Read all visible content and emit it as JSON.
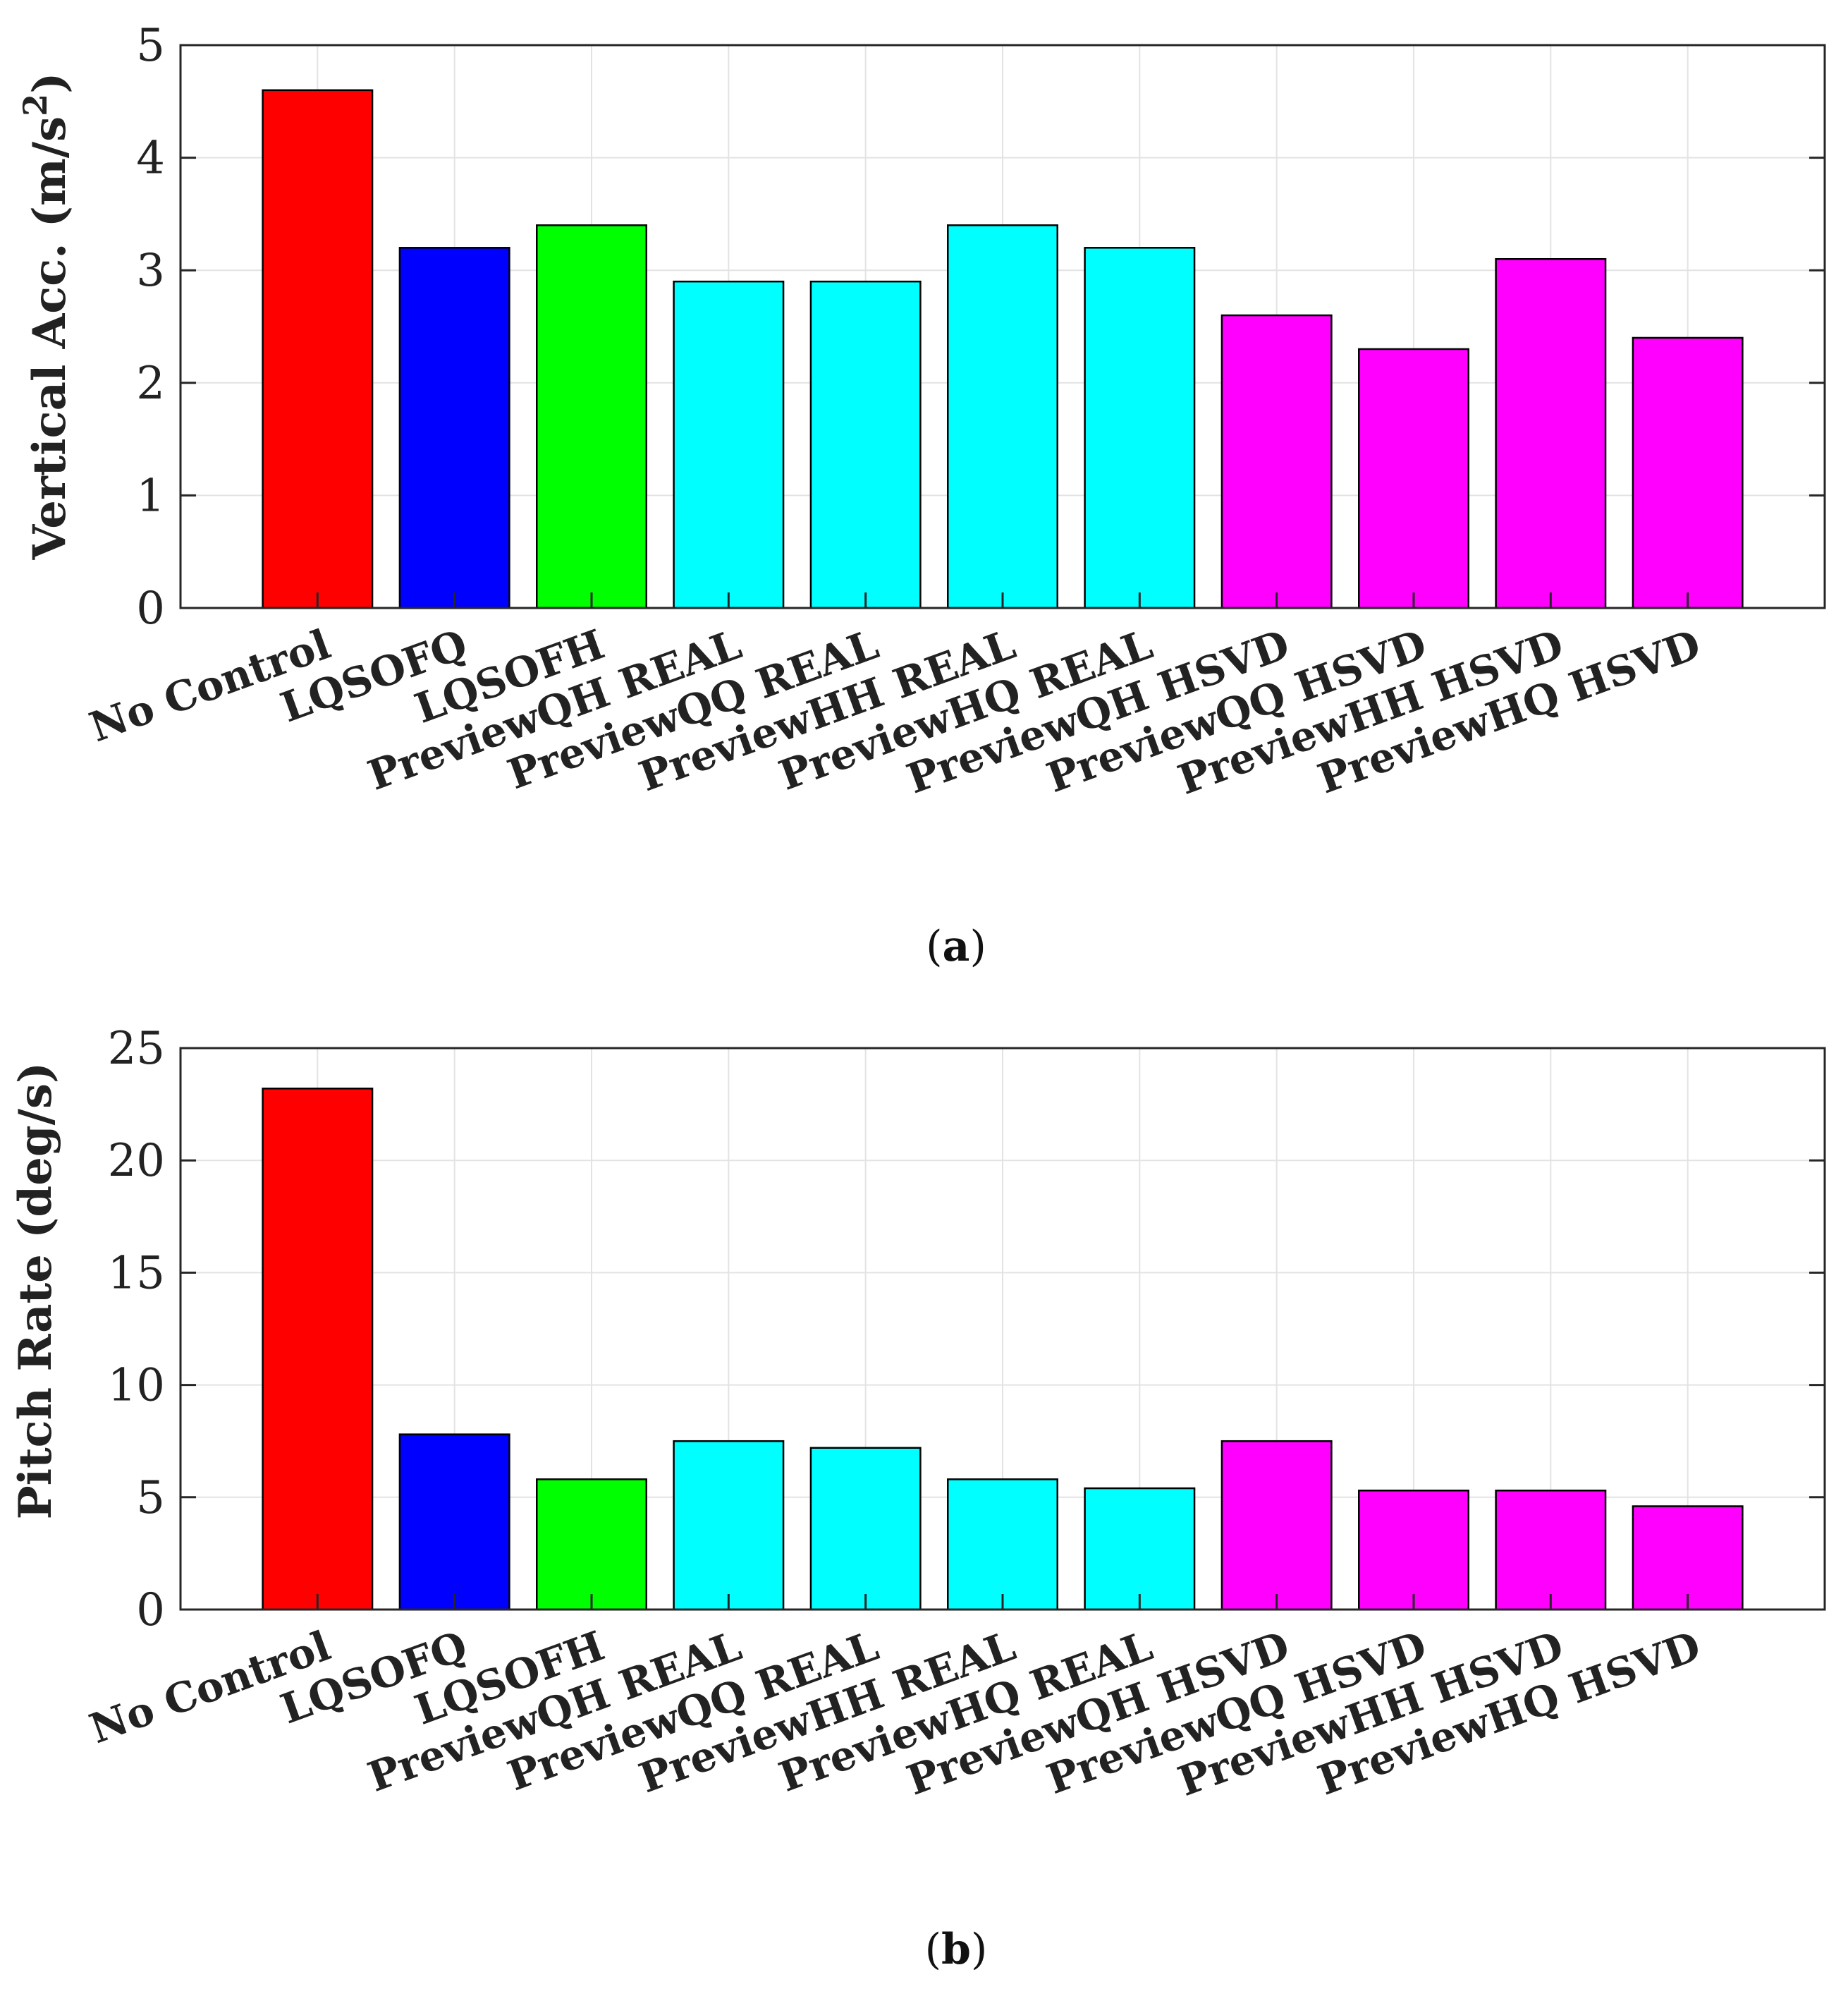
{
  "chart_data": [
    {
      "type": "bar",
      "caption": "a",
      "ylabel": "Vertical Acc. (m/s",
      "ylabel_superscript": "2",
      "ylabel_suffix": ")",
      "ylim": [
        0,
        5
      ],
      "yticks": [
        "0",
        "1",
        "2",
        "3",
        "4",
        "5"
      ],
      "grid": true,
      "categories": [
        "No Control",
        "LQSOFQ",
        "LQSOFH",
        "PreviewQH REAL",
        "PreviewQQ REAL",
        "PreviewHH REAL",
        "PreviewHQ REAL",
        "PreviewQH HSVD",
        "PreviewQQ HSVD",
        "PreviewHH HSVD",
        "PreviewHQ HSVD"
      ],
      "values": [
        4.6,
        3.2,
        3.4,
        2.9,
        2.9,
        3.4,
        3.2,
        2.6,
        2.3,
        3.1,
        2.4
      ],
      "colors": [
        "#ff0000",
        "#0000ff",
        "#00ff00",
        "#00ffff",
        "#00ffff",
        "#00ffff",
        "#00ffff",
        "#ff00ff",
        "#ff00ff",
        "#ff00ff",
        "#ff00ff"
      ]
    },
    {
      "type": "bar",
      "caption": "b",
      "ylabel": "Pitch Rate (deg/s)",
      "ylabel_superscript": "",
      "ylabel_suffix": "",
      "ylim": [
        0,
        25
      ],
      "yticks": [
        "0",
        "5",
        "10",
        "15",
        "20",
        "25"
      ],
      "grid": true,
      "categories": [
        "No Control",
        "LQSOFQ",
        "LQSOFH",
        "PreviewQH REAL",
        "PreviewQQ REAL",
        "PreviewHH REAL",
        "PreviewHQ REAL",
        "PreviewQH HSVD",
        "PreviewQQ HSVD",
        "PreviewHH HSVD",
        "PreviewHQ HSVD"
      ],
      "values": [
        23.2,
        7.8,
        5.8,
        7.5,
        7.2,
        5.8,
        5.4,
        7.5,
        5.3,
        5.3,
        4.6
      ],
      "colors": [
        "#ff0000",
        "#0000ff",
        "#00ff00",
        "#00ffff",
        "#00ffff",
        "#00ffff",
        "#00ffff",
        "#ff00ff",
        "#ff00ff",
        "#ff00ff",
        "#ff00ff"
      ]
    }
  ]
}
